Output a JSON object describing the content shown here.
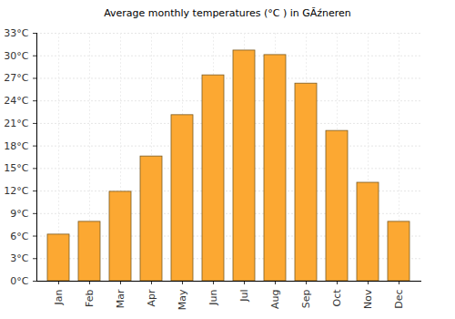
{
  "chart_data": {
    "type": "bar",
    "title": "Average monthly temperatures (°C ) in GĂźneren",
    "categories": [
      "Jan",
      "Feb",
      "Mar",
      "Apr",
      "May",
      "Jun",
      "Jul",
      "Aug",
      "Sep",
      "Oct",
      "Nov",
      "Dec"
    ],
    "values": [
      6.2,
      7.9,
      11.9,
      16.6,
      22.1,
      27.4,
      30.7,
      30.1,
      26.3,
      20.0,
      13.1,
      7.9
    ],
    "color": "#fca832",
    "ylim": [
      0,
      33
    ],
    "yticks": [
      {
        "value": 0,
        "label": "0°C"
      },
      {
        "value": 3,
        "label": "3°C"
      },
      {
        "value": 6,
        "label": "6°C"
      },
      {
        "value": 9,
        "label": "9°C"
      },
      {
        "value": 12,
        "label": "12°C"
      },
      {
        "value": 15,
        "label": "15°C"
      },
      {
        "value": 18,
        "label": "18°C"
      },
      {
        "value": 21,
        "label": "21°C"
      },
      {
        "value": 24,
        "label": "24°C"
      },
      {
        "value": 27,
        "label": "27°C"
      },
      {
        "value": 30,
        "label": "30°C"
      },
      {
        "value": 33,
        "label": "33°C"
      }
    ],
    "grid": true
  }
}
